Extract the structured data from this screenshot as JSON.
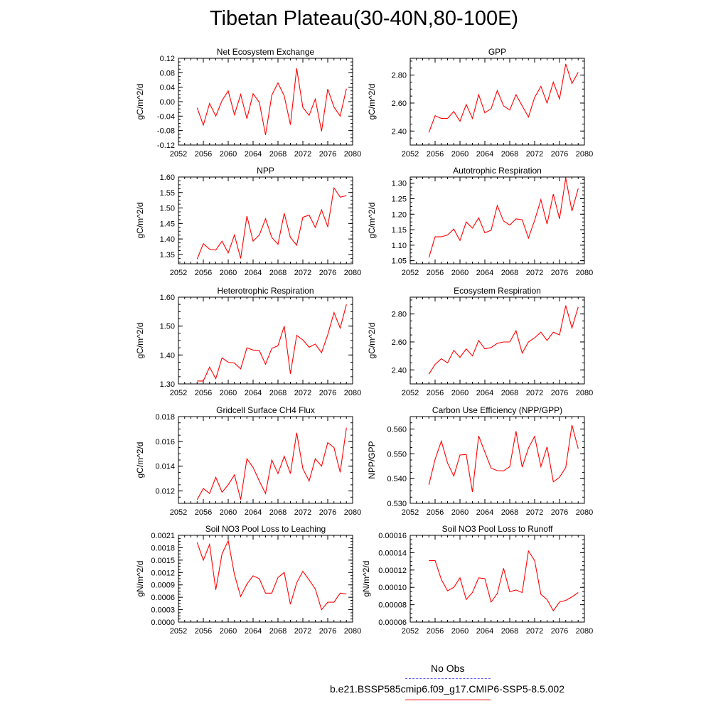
{
  "title": "Tibetan Plateau(30-40N,80-100E)",
  "legend": [
    {
      "label": "No Obs",
      "color": "#5b5bff",
      "style": "dashed"
    },
    {
      "label": "b.e21.BSSP585cmip6.f09_g17.CMIP6-SSP5-8.5.002",
      "color": "#ff0000",
      "style": "solid"
    }
  ],
  "chart_data": [
    {
      "type": "line",
      "title": "Net Ecosystem Exchange",
      "ylabel": "gC/m^2/d",
      "xlim": [
        2052,
        2080
      ],
      "ylim": [
        -0.12,
        0.12
      ],
      "xticks": [
        "2052",
        "2056",
        "2060",
        "2064",
        "2068",
        "2072",
        "2076",
        "2080"
      ],
      "yticks": [
        "-0.12",
        "-0.08",
        "-0.04",
        "0.00",
        "0.04",
        "0.08",
        "0.12"
      ],
      "x": [
        2055,
        2056,
        2057,
        2058,
        2059,
        2060,
        2061,
        2062,
        2063,
        2064,
        2065,
        2066,
        2067,
        2068,
        2069,
        2070,
        2071,
        2072,
        2073,
        2074,
        2075,
        2076,
        2077,
        2078,
        2079
      ],
      "y": [
        -0.017,
        -0.065,
        -0.005,
        -0.04,
        0.003,
        0.03,
        -0.036,
        0.02,
        -0.047,
        0.022,
        -0.002,
        -0.092,
        0.018,
        0.052,
        0.016,
        -0.064,
        0.092,
        -0.016,
        -0.038,
        0.007,
        -0.082,
        0.035,
        -0.015,
        -0.04,
        0.036
      ],
      "color": "#ff0000"
    },
    {
      "type": "line",
      "title": "GPP",
      "ylabel": "gC/m^2/d",
      "xlim": [
        2052,
        2080
      ],
      "ylim": [
        2.3,
        2.92
      ],
      "xticks": [
        "2052",
        "2056",
        "2060",
        "2064",
        "2068",
        "2072",
        "2076",
        "2080"
      ],
      "yticks": [
        "2.40",
        "2.60",
        "2.80"
      ],
      "x": [
        2055,
        2056,
        2057,
        2058,
        2059,
        2060,
        2061,
        2062,
        2063,
        2064,
        2065,
        2066,
        2067,
        2068,
        2069,
        2070,
        2071,
        2072,
        2073,
        2074,
        2075,
        2076,
        2077,
        2078,
        2079
      ],
      "y": [
        2.39,
        2.51,
        2.49,
        2.49,
        2.54,
        2.47,
        2.59,
        2.49,
        2.66,
        2.53,
        2.56,
        2.69,
        2.58,
        2.55,
        2.66,
        2.58,
        2.5,
        2.64,
        2.72,
        2.6,
        2.75,
        2.63,
        2.88,
        2.74,
        2.82
      ],
      "color": "#ff0000"
    },
    {
      "type": "line",
      "title": "NPP",
      "ylabel": "gC/m^2/d",
      "xlim": [
        2052,
        2080
      ],
      "ylim": [
        1.32,
        1.6
      ],
      "xticks": [
        "2052",
        "2056",
        "2060",
        "2064",
        "2068",
        "2072",
        "2076",
        "2080"
      ],
      "yticks": [
        "1.35",
        "1.40",
        "1.45",
        "1.50",
        "1.55",
        "1.60"
      ],
      "x": [
        2055,
        2056,
        2057,
        2058,
        2059,
        2060,
        2061,
        2062,
        2063,
        2064,
        2065,
        2066,
        2067,
        2068,
        2069,
        2070,
        2071,
        2072,
        2073,
        2074,
        2075,
        2076,
        2077,
        2078,
        2079
      ],
      "y": [
        1.335,
        1.385,
        1.367,
        1.364,
        1.393,
        1.355,
        1.413,
        1.337,
        1.474,
        1.393,
        1.413,
        1.465,
        1.405,
        1.383,
        1.483,
        1.405,
        1.38,
        1.47,
        1.477,
        1.437,
        1.494,
        1.44,
        1.565,
        1.535,
        1.54
      ],
      "color": "#ff0000"
    },
    {
      "type": "line",
      "title": "Autotrophic Respiration",
      "ylabel": "gC/m^2/d",
      "xlim": [
        2052,
        2080
      ],
      "ylim": [
        1.04,
        1.32
      ],
      "xticks": [
        "2052",
        "2056",
        "2060",
        "2064",
        "2068",
        "2072",
        "2076",
        "2080"
      ],
      "yticks": [
        "1.05",
        "1.10",
        "1.15",
        "1.20",
        "1.25",
        "1.30"
      ],
      "x": [
        2055,
        2056,
        2057,
        2058,
        2059,
        2060,
        2061,
        2062,
        2063,
        2064,
        2065,
        2066,
        2067,
        2068,
        2069,
        2070,
        2071,
        2072,
        2073,
        2074,
        2075,
        2076,
        2077,
        2078,
        2079
      ],
      "y": [
        1.06,
        1.127,
        1.127,
        1.133,
        1.152,
        1.115,
        1.175,
        1.155,
        1.188,
        1.14,
        1.148,
        1.228,
        1.178,
        1.165,
        1.185,
        1.182,
        1.123,
        1.18,
        1.247,
        1.168,
        1.265,
        1.185,
        1.317,
        1.21,
        1.283
      ],
      "color": "#ff0000"
    },
    {
      "type": "line",
      "title": "Heterotrophic Respiration",
      "ylabel": "gC/m^2/d",
      "xlim": [
        2052,
        2080
      ],
      "ylim": [
        1.3,
        1.6
      ],
      "xticks": [
        "2052",
        "2056",
        "2060",
        "2064",
        "2068",
        "2072",
        "2076",
        "2080"
      ],
      "yticks": [
        "1.30",
        "1.40",
        "1.50",
        "1.60"
      ],
      "x": [
        2055,
        2056,
        2057,
        2058,
        2059,
        2060,
        2061,
        2062,
        2063,
        2064,
        2065,
        2066,
        2067,
        2068,
        2069,
        2070,
        2071,
        2072,
        2073,
        2074,
        2075,
        2076,
        2077,
        2078,
        2079
      ],
      "y": [
        1.31,
        1.31,
        1.358,
        1.318,
        1.39,
        1.375,
        1.372,
        1.352,
        1.425,
        1.417,
        1.415,
        1.368,
        1.423,
        1.432,
        1.5,
        1.335,
        1.468,
        1.452,
        1.427,
        1.438,
        1.408,
        1.47,
        1.547,
        1.493,
        1.575
      ],
      "color": "#ff0000"
    },
    {
      "type": "line",
      "title": "Ecosystem Respiration",
      "ylabel": "gC/m^2/d",
      "xlim": [
        2052,
        2080
      ],
      "ylim": [
        2.3,
        2.92
      ],
      "xticks": [
        "2052",
        "2056",
        "2060",
        "2064",
        "2068",
        "2072",
        "2076",
        "2080"
      ],
      "yticks": [
        "2.40",
        "2.60",
        "2.80"
      ],
      "x": [
        2055,
        2056,
        2057,
        2058,
        2059,
        2060,
        2061,
        2062,
        2063,
        2064,
        2065,
        2066,
        2067,
        2068,
        2069,
        2070,
        2071,
        2072,
        2073,
        2074,
        2075,
        2076,
        2077,
        2078,
        2079
      ],
      "y": [
        2.37,
        2.44,
        2.48,
        2.45,
        2.54,
        2.49,
        2.55,
        2.5,
        2.61,
        2.55,
        2.56,
        2.59,
        2.6,
        2.6,
        2.68,
        2.52,
        2.6,
        2.63,
        2.67,
        2.61,
        2.67,
        2.65,
        2.86,
        2.7,
        2.85
      ],
      "color": "#ff0000"
    },
    {
      "type": "line",
      "title": "Gridcell Surface CH4 Flux",
      "ylabel": "gC/m^2/d",
      "xlim": [
        2052,
        2080
      ],
      "ylim": [
        0.011,
        0.018
      ],
      "xticks": [
        "2052",
        "2056",
        "2060",
        "2064",
        "2068",
        "2072",
        "2076",
        "2080"
      ],
      "yticks": [
        "0.012",
        "0.014",
        "0.016",
        "0.018"
      ],
      "x": [
        2055,
        2056,
        2057,
        2058,
        2059,
        2060,
        2061,
        2062,
        2063,
        2064,
        2065,
        2066,
        2067,
        2068,
        2069,
        2070,
        2071,
        2072,
        2073,
        2074,
        2075,
        2076,
        2077,
        2078,
        2079
      ],
      "y": [
        0.0113,
        0.0122,
        0.0118,
        0.0131,
        0.0119,
        0.0125,
        0.0133,
        0.0113,
        0.0146,
        0.0139,
        0.0128,
        0.0118,
        0.0145,
        0.0134,
        0.0148,
        0.0134,
        0.0167,
        0.0138,
        0.0128,
        0.0146,
        0.014,
        0.0159,
        0.0155,
        0.0135,
        0.0171
      ],
      "color": "#ff0000"
    },
    {
      "type": "line",
      "title": "Carbon Use Efficiency (NPP/GPP)",
      "ylabel": "NPP/GPP",
      "xlim": [
        2052,
        2080
      ],
      "ylim": [
        0.53,
        0.565
      ],
      "xticks": [
        "2052",
        "2056",
        "2060",
        "2064",
        "2068",
        "2072",
        "2076",
        "2080"
      ],
      "yticks": [
        "0.530",
        "0.540",
        "0.550",
        "0.560"
      ],
      "x": [
        2055,
        2056,
        2057,
        2058,
        2059,
        2060,
        2061,
        2062,
        2063,
        2064,
        2065,
        2066,
        2067,
        2068,
        2069,
        2070,
        2071,
        2072,
        2073,
        2074,
        2075,
        2076,
        2077,
        2078,
        2079
      ],
      "y": [
        0.5375,
        0.5478,
        0.5551,
        0.5463,
        0.541,
        0.5495,
        0.5497,
        0.5346,
        0.5572,
        0.5507,
        0.5442,
        0.5432,
        0.5431,
        0.5448,
        0.5591,
        0.5446,
        0.5523,
        0.557,
        0.5449,
        0.5528,
        0.5387,
        0.5405,
        0.5445,
        0.5616,
        0.5521
      ],
      "color": "#ff0000"
    },
    {
      "type": "line",
      "title": "Soil NO3 Pool Loss to Leaching",
      "ylabel": "gN/m^2/d",
      "xlim": [
        2052,
        2080
      ],
      "ylim": [
        0,
        0.0021
      ],
      "xticks": [
        "2052",
        "2056",
        "2060",
        "2064",
        "2068",
        "2072",
        "2076",
        "2080"
      ],
      "yticks": [
        "0.0000",
        "0.0003",
        "0.0006",
        "0.0009",
        "0.0012",
        "0.0015",
        "0.0018",
        "0.0021"
      ],
      "x": [
        2055,
        2056,
        2057,
        2058,
        2059,
        2060,
        2061,
        2062,
        2063,
        2064,
        2065,
        2066,
        2067,
        2068,
        2069,
        2070,
        2071,
        2072,
        2073,
        2074,
        2075,
        2076,
        2077,
        2078,
        2079
      ],
      "y": [
        0.00193,
        0.0015,
        0.00188,
        0.00078,
        0.00165,
        0.00197,
        0.00115,
        0.00062,
        0.00092,
        0.00112,
        0.00105,
        0.0007,
        0.0007,
        0.00108,
        0.0012,
        0.00043,
        0.00095,
        0.00123,
        0.00102,
        0.0008,
        0.0003,
        0.00048,
        0.00048,
        0.0007,
        0.00068
      ],
      "color": "#ff0000"
    },
    {
      "type": "line",
      "title": "Soil NO3 Pool Loss to Runoff",
      "ylabel": "gN/m^2/d",
      "xlim": [
        2052,
        2080
      ],
      "ylim": [
        6e-05,
        0.00016
      ],
      "xticks": [
        "2052",
        "2056",
        "2060",
        "2064",
        "2068",
        "2072",
        "2076",
        "2080"
      ],
      "yticks": [
        "0.00006",
        "0.00008",
        "0.00010",
        "0.00012",
        "0.00014",
        "0.00016"
      ],
      "x": [
        2055,
        2056,
        2057,
        2058,
        2059,
        2060,
        2061,
        2062,
        2063,
        2064,
        2065,
        2066,
        2067,
        2068,
        2069,
        2070,
        2071,
        2072,
        2073,
        2074,
        2075,
        2076,
        2077,
        2078,
        2079
      ],
      "y": [
        0.000131,
        0.000131,
        0.000109,
        9.6e-05,
        0.0001,
        0.000111,
        8.6e-05,
        9.4e-05,
        0.000111,
        0.00011,
        8.3e-05,
        9.3e-05,
        0.000122,
        9.5e-05,
        9.7e-05,
        9.4e-05,
        0.000142,
        0.000131,
        9.2e-05,
        8.6e-05,
        7.3e-05,
        8.3e-05,
        8.5e-05,
        8.9e-05,
        9.4e-05
      ],
      "color": "#ff0000"
    }
  ]
}
